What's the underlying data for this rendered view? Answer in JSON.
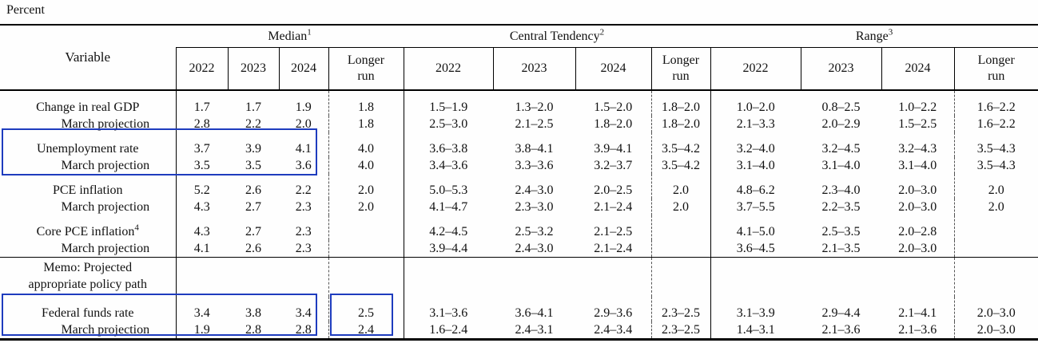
{
  "page_label": "Percent",
  "colors": {
    "highlight": "#1e3cbe",
    "rule": "#000000",
    "text": "#111111"
  },
  "table": {
    "variable_header": "Variable",
    "sections": [
      {
        "label": "Median",
        "sup": "1",
        "years": [
          "2022",
          "2023",
          "2024"
        ],
        "longer_run": "Longer\nrun"
      },
      {
        "label": "Central Tendency",
        "sup": "2",
        "years": [
          "2022",
          "2023",
          "2024"
        ],
        "longer_run": "Longer\nrun"
      },
      {
        "label": "Range",
        "sup": "3",
        "years": [
          "2022",
          "2023",
          "2024"
        ],
        "longer_run": "Longer\nrun"
      }
    ],
    "rows": [
      {
        "type": "data",
        "group_start": true,
        "label": "Change in real GDP",
        "sup": "",
        "indent": false,
        "cells": [
          "1.7",
          "1.7",
          "1.9",
          "1.8",
          "1.5–1.9",
          "1.3–2.0",
          "1.5–2.0",
          "1.8–2.0",
          "1.0–2.0",
          "0.8–2.5",
          "1.0–2.2",
          "1.6–2.2"
        ]
      },
      {
        "type": "data",
        "group_start": false,
        "label": "March projection",
        "sup": "",
        "indent": true,
        "cells": [
          "2.8",
          "2.2",
          "2.0",
          "1.8",
          "2.5–3.0",
          "2.1–2.5",
          "1.8–2.0",
          "1.8–2.0",
          "2.1–3.3",
          "2.0–2.9",
          "1.5–2.5",
          "1.6–2.2"
        ]
      },
      {
        "type": "data",
        "group_start": true,
        "label": "Unemployment rate",
        "sup": "",
        "indent": false,
        "cells": [
          "3.7",
          "3.9",
          "4.1",
          "4.0",
          "3.6–3.8",
          "3.8–4.1",
          "3.9–4.1",
          "3.5–4.2",
          "3.2–4.0",
          "3.2–4.5",
          "3.2–4.3",
          "3.5–4.3"
        ]
      },
      {
        "type": "data",
        "group_start": false,
        "label": "March projection",
        "sup": "",
        "indent": true,
        "cells": [
          "3.5",
          "3.5",
          "3.6",
          "4.0",
          "3.4–3.6",
          "3.3–3.6",
          "3.2–3.7",
          "3.5–4.2",
          "3.1–4.0",
          "3.1–4.0",
          "3.1–4.0",
          "3.5–4.3"
        ]
      },
      {
        "type": "data",
        "group_start": true,
        "label": "PCE inflation",
        "sup": "",
        "indent": false,
        "cells": [
          "5.2",
          "2.6",
          "2.2",
          "2.0",
          "5.0–5.3",
          "2.4–3.0",
          "2.0–2.5",
          "2.0",
          "4.8–6.2",
          "2.3–4.0",
          "2.0–3.0",
          "2.0"
        ]
      },
      {
        "type": "data",
        "group_start": false,
        "label": "March projection",
        "sup": "",
        "indent": true,
        "cells": [
          "4.3",
          "2.7",
          "2.3",
          "2.0",
          "4.1–4.7",
          "2.3–3.0",
          "2.1–2.4",
          "2.0",
          "3.7–5.5",
          "2.2–3.5",
          "2.0–3.0",
          "2.0"
        ]
      },
      {
        "type": "data",
        "group_start": true,
        "label": "Core PCE inflation",
        "sup": "4",
        "indent": false,
        "cells": [
          "4.3",
          "2.7",
          "2.3",
          "",
          "4.2–4.5",
          "2.5–3.2",
          "2.1–2.5",
          "",
          "4.1–5.0",
          "2.5–3.5",
          "2.0–2.8",
          ""
        ]
      },
      {
        "type": "data",
        "group_start": false,
        "label": "March projection",
        "sup": "",
        "indent": true,
        "cells": [
          "4.1",
          "2.6",
          "2.3",
          "",
          "3.9–4.4",
          "2.4–3.0",
          "2.1–2.4",
          "",
          "3.6–4.5",
          "2.1–3.5",
          "2.0–3.0",
          ""
        ]
      },
      {
        "type": "memo",
        "label": "Memo: Projected\nappropriate policy path",
        "cells": [
          "",
          "",
          "",
          "",
          "",
          "",
          "",
          "",
          "",
          "",
          "",
          ""
        ]
      },
      {
        "type": "data",
        "group_start": true,
        "label": "Federal funds rate",
        "sup": "",
        "indent": false,
        "cells": [
          "3.4",
          "3.8",
          "3.4",
          "2.5",
          "3.1–3.6",
          "3.6–4.1",
          "2.9–3.6",
          "2.3–2.5",
          "3.1–3.9",
          "2.9–4.4",
          "2.1–4.1",
          "2.0–3.0"
        ]
      },
      {
        "type": "data",
        "group_start": false,
        "label": "March projection",
        "sup": "",
        "indent": true,
        "cells": [
          "1.9",
          "2.8",
          "2.8",
          "2.4",
          "1.6–2.4",
          "2.4–3.1",
          "2.4–3.4",
          "2.3–2.5",
          "1.4–3.1",
          "2.1–3.6",
          "2.1–3.6",
          "2.0–3.0"
        ]
      }
    ]
  }
}
